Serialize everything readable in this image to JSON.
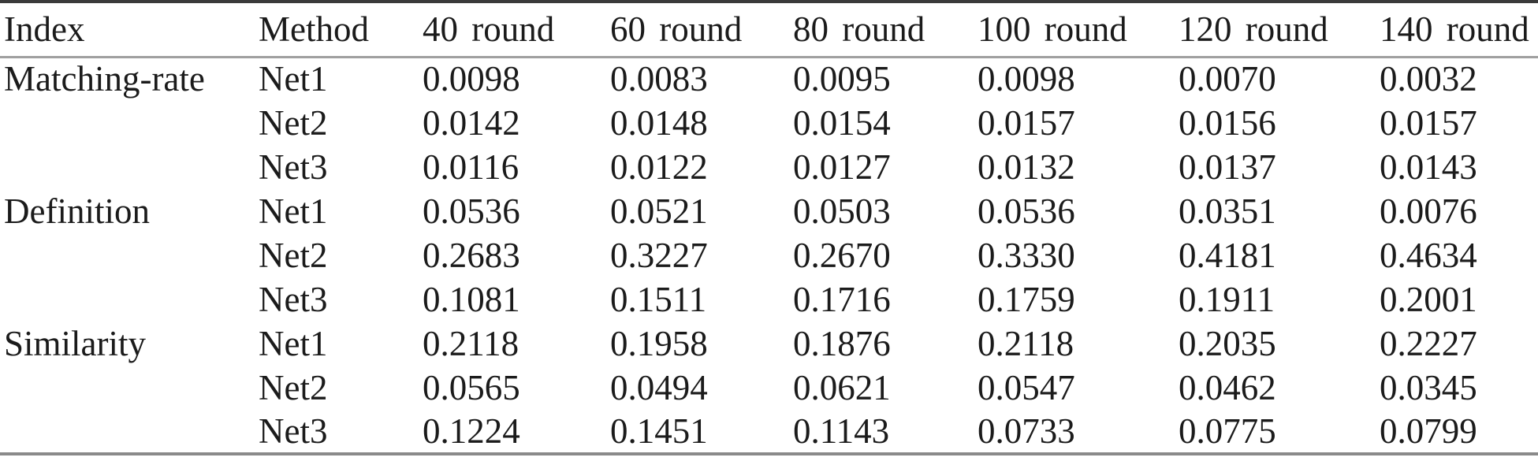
{
  "table": {
    "columns": [
      "Index",
      "Method",
      "40 round",
      "60 round",
      "80 round",
      "100 round",
      "120 round",
      "140 round"
    ],
    "rows": [
      {
        "index": "Matching-rate",
        "method": "Net1",
        "values": [
          "0.0098",
          "0.0083",
          "0.0095",
          "0.0098",
          "0.0070",
          "0.0032"
        ]
      },
      {
        "index": "",
        "method": "Net2",
        "values": [
          "0.0142",
          "0.0148",
          "0.0154",
          "0.0157",
          "0.0156",
          "0.0157"
        ]
      },
      {
        "index": "",
        "method": "Net3",
        "values": [
          "0.0116",
          "0.0122",
          "0.0127",
          "0.0132",
          "0.0137",
          "0.0143"
        ]
      },
      {
        "index": "Definition",
        "method": "Net1",
        "values": [
          "0.0536",
          "0.0521",
          "0.0503",
          "0.0536",
          "0.0351",
          "0.0076"
        ]
      },
      {
        "index": "",
        "method": "Net2",
        "values": [
          "0.2683",
          "0.3227",
          "0.2670",
          "0.3330",
          "0.4181",
          "0.4634"
        ]
      },
      {
        "index": "",
        "method": "Net3",
        "values": [
          "0.1081",
          "0.1511",
          "0.1716",
          "0.1759",
          "0.1911",
          "0.2001"
        ]
      },
      {
        "index": "Similarity",
        "method": "Net1",
        "values": [
          "0.2118",
          "0.1958",
          "0.1876",
          "0.2118",
          "0.2035",
          "0.2227"
        ]
      },
      {
        "index": "",
        "method": "Net2",
        "values": [
          "0.0565",
          "0.0494",
          "0.0621",
          "0.0547",
          "0.0462",
          "0.0345"
        ]
      },
      {
        "index": "",
        "method": "Net3",
        "values": [
          "0.1224",
          "0.1451",
          "0.1143",
          "0.0733",
          "0.0775",
          "0.0799"
        ]
      }
    ]
  },
  "colors": {
    "text": "#1b1b1b",
    "rule_top": "#3a3a3a",
    "rule_mid": "#a0a0a0",
    "rule_bottom": "#8a8a8a",
    "background": "#ffffff"
  }
}
